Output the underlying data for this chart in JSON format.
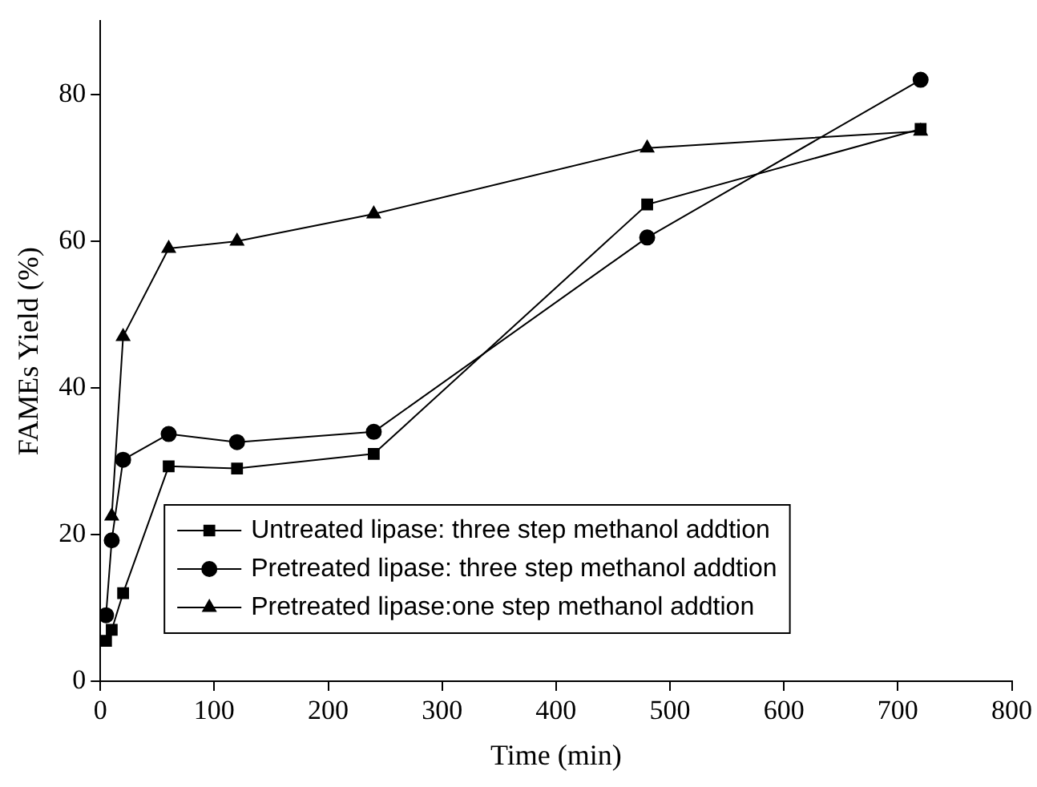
{
  "chart_data": {
    "type": "line",
    "xlabel": "Time (min)",
    "ylabel": "FAMEs Yield (%)",
    "xlim": [
      0,
      800
    ],
    "xticks": [
      0,
      100,
      200,
      300,
      400,
      500,
      600,
      700,
      800
    ],
    "ylim": [
      0,
      90
    ],
    "yticks": [
      0,
      20,
      40,
      60,
      80
    ],
    "grid": false,
    "legend": "bottom",
    "line_style": "solid",
    "series": [
      {
        "name": "Untreated lipase: three step methanol addtion",
        "color": "#000000",
        "marker": "square",
        "x": [
          5,
          10,
          20,
          60,
          120,
          240,
          480,
          720
        ],
        "values": [
          5.5,
          7,
          12,
          29.3,
          29,
          31,
          65,
          75.3
        ]
      },
      {
        "name": "Pretreated lipase: three step methanol addtion",
        "color": "#000000",
        "marker": "circle",
        "x": [
          5,
          10,
          20,
          60,
          120,
          240,
          480,
          720
        ],
        "values": [
          9,
          19.2,
          30.2,
          33.7,
          32.6,
          34,
          60.5,
          82
        ]
      },
      {
        "name": "Pretreated lipase:one step methanol addtion",
        "color": "#000000",
        "marker": "triangle",
        "x": [
          10,
          20,
          60,
          120,
          240,
          480,
          720
        ],
        "values": [
          22.5,
          47,
          59,
          60,
          63.7,
          72.7,
          75
        ]
      }
    ]
  }
}
